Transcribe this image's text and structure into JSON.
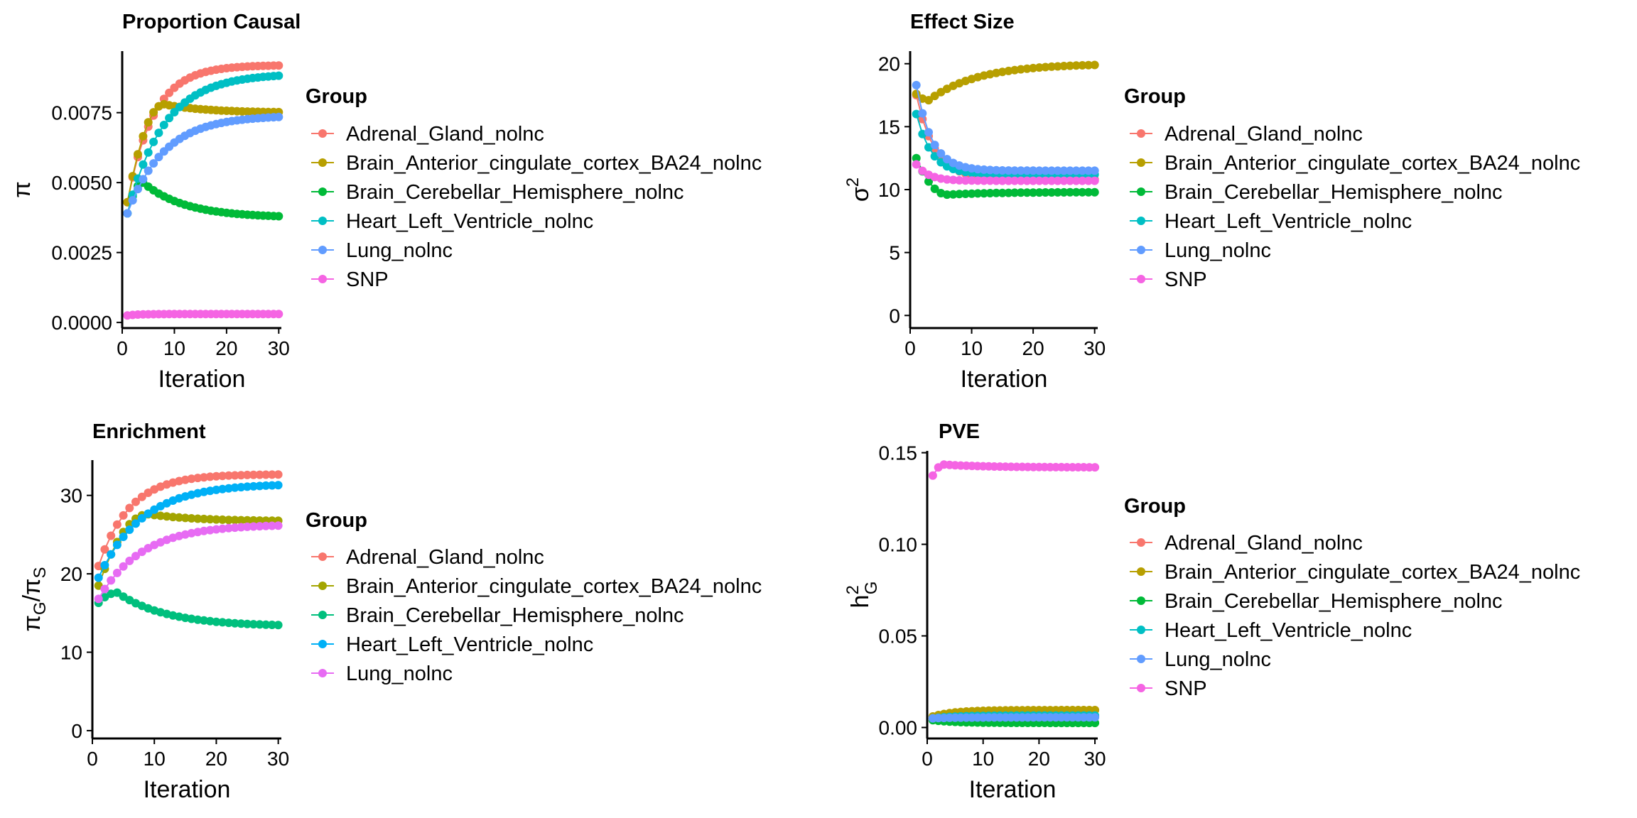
{
  "figure": {
    "description_free": true
  },
  "chart_data": [
    {
      "id": "proportion",
      "type": "line",
      "title": "Proportion Causal",
      "xlabel": "Iteration",
      "ylabel": "π",
      "xlim": [
        0,
        30.5
      ],
      "ylim": [
        -0.0002,
        0.0097
      ],
      "xticks": [
        0,
        10,
        20,
        30
      ],
      "xtick_labels": [
        "0",
        "10",
        "20",
        "30"
      ],
      "yticks": [
        0,
        0.0025,
        0.005,
        0.0075
      ],
      "ytick_labels": [
        "0.0000",
        "0.0025",
        "0.0050",
        "0.0075"
      ],
      "legend_title": "Group",
      "legend_position": "right",
      "series": [
        {
          "name": "Adrenal_Gland_nolnc",
          "color": "#F8766D",
          "start": 0.0043,
          "end": 0.0092,
          "peak_at": null,
          "peak": null,
          "tau": 5
        },
        {
          "name": "Brain_Anterior_cingulate_cortex_BA24_nolnc",
          "color": "#B79F00",
          "start": 0.0043,
          "end": 0.0075,
          "peak_at": 8,
          "peak": 0.0078,
          "tau": 3
        },
        {
          "name": "Brain_Cerebellar_Hemisphere_nolnc",
          "color": "#00BA38",
          "start": 0.0039,
          "end": 0.00375,
          "peak_at": 4,
          "peak": 0.005,
          "tau": 2
        },
        {
          "name": "Heart_Left_Ventricle_nolnc",
          "color": "#00BFC4",
          "start": 0.0039,
          "end": 0.0089,
          "peak_at": null,
          "peak": null,
          "tau": 7
        },
        {
          "name": "Lung_nolnc",
          "color": "#619CFF",
          "start": 0.0039,
          "end": 0.0074,
          "peak_at": null,
          "peak": null,
          "tau": 7
        },
        {
          "name": "SNP",
          "color": "#F564E3",
          "start": 0.00025,
          "end": 0.0003,
          "peak_at": null,
          "peak": null,
          "tau": 2
        }
      ]
    },
    {
      "id": "effect",
      "type": "line",
      "title": "Effect Size",
      "xlabel": "Iteration",
      "ylabel": "σ2",
      "xlim": [
        0,
        30.5
      ],
      "ylim": [
        -1,
        21
      ],
      "xticks": [
        0,
        10,
        20,
        30
      ],
      "xtick_labels": [
        "0",
        "10",
        "20",
        "30"
      ],
      "yticks": [
        0,
        5,
        10,
        15,
        20
      ],
      "ytick_labels": [
        "0",
        "5",
        "10",
        "15",
        "20"
      ],
      "legend_title": "Group",
      "legend_position": "right",
      "series": [
        {
          "name": "Adrenal_Gland_nolnc",
          "color": "#F8766D",
          "start": 17.5,
          "end": 10.8,
          "peak_at": null,
          "peak": null,
          "tau": 3
        },
        {
          "name": "Brain_Anterior_cingulate_cortex_BA24_nolnc",
          "color": "#B79F00",
          "start": 17.6,
          "end": 20.0,
          "peak_at": 3,
          "peak": 17.1,
          "tau": 5
        },
        {
          "name": "Brain_Cerebellar_Hemisphere_nolnc",
          "color": "#00BA38",
          "start": 12.5,
          "end": 9.8,
          "peak_at": 6,
          "peak": 9.6,
          "tau": 1.5
        },
        {
          "name": "Heart_Left_Ventricle_nolnc",
          "color": "#00BFC4",
          "start": 16.0,
          "end": 11.2,
          "peak_at": null,
          "peak": null,
          "tau": 2.5
        },
        {
          "name": "Lung_nolnc",
          "color": "#619CFF",
          "start": 18.3,
          "end": 11.5,
          "peak_at": null,
          "peak": null,
          "tau": 2.5
        },
        {
          "name": "SNP",
          "color": "#F564E3",
          "start": 12.0,
          "end": 10.7,
          "peak_at": null,
          "peak": null,
          "tau": 2
        }
      ]
    },
    {
      "id": "enrichment",
      "type": "line",
      "title": "Enrichment",
      "xlabel": "Iteration",
      "ylabel": "πG/πS",
      "xlim": [
        0,
        30.5
      ],
      "ylim": [
        -1,
        34.5
      ],
      "xticks": [
        0,
        10,
        20,
        30
      ],
      "xtick_labels": [
        "0",
        "10",
        "20",
        "30"
      ],
      "yticks": [
        0,
        10,
        20,
        30
      ],
      "ytick_labels": [
        "0",
        "10",
        "20",
        "30"
      ],
      "legend_title": "Group",
      "legend_position": "right",
      "series": [
        {
          "name": "Adrenal_Gland_nolnc",
          "color": "#F8766D",
          "start": 21.0,
          "end": 32.7,
          "peak_at": null,
          "peak": null,
          "tau": 5
        },
        {
          "name": "Brain_Anterior_cingulate_cortex_BA24_nolnc",
          "color": "#A3A500",
          "start": 18.5,
          "end": 26.7,
          "peak_at": 9,
          "peak": 27.6,
          "tau": 3
        },
        {
          "name": "Brain_Cerebellar_Hemisphere_nolnc",
          "color": "#00BF7D",
          "start": 16.3,
          "end": 13.3,
          "peak_at": 4,
          "peak": 17.6,
          "tau": 2
        },
        {
          "name": "Heart_Left_Ventricle_nolnc",
          "color": "#00B0F6",
          "start": 19.5,
          "end": 31.5,
          "peak_at": null,
          "peak": null,
          "tau": 7
        },
        {
          "name": "Lung_nolnc",
          "color": "#E76BF3",
          "start": 16.8,
          "end": 26.3,
          "peak_at": null,
          "peak": null,
          "tau": 7
        }
      ]
    },
    {
      "id": "pve",
      "type": "line",
      "title": "PVE",
      "xlabel": "Iteration",
      "ylabel": "h2G",
      "xlim": [
        0,
        30.5
      ],
      "ylim": [
        -0.006,
        0.151
      ],
      "xticks": [
        0,
        10,
        20,
        30
      ],
      "xtick_labels": [
        "0",
        "10",
        "20",
        "30"
      ],
      "yticks": [
        0,
        0.05,
        0.1,
        0.15
      ],
      "ytick_labels": [
        "0.00",
        "0.05",
        "0.10",
        "0.15"
      ],
      "legend_title": "Group",
      "legend_position": "right",
      "series": [
        {
          "name": "Adrenal_Gland_nolnc",
          "color": "#F8766D",
          "start": 0.005,
          "end": 0.006,
          "peak_at": null,
          "peak": null,
          "tau": 4
        },
        {
          "name": "Brain_Anterior_cingulate_cortex_BA24_nolnc",
          "color": "#B79F00",
          "start": 0.006,
          "end": 0.0095,
          "peak_at": null,
          "peak": null,
          "tau": 4
        },
        {
          "name": "Brain_Cerebellar_Hemisphere_nolnc",
          "color": "#00BA38",
          "start": 0.004,
          "end": 0.0025,
          "peak_at": null,
          "peak": null,
          "tau": 4
        },
        {
          "name": "Heart_Left_Ventricle_nolnc",
          "color": "#00BFC4",
          "start": 0.005,
          "end": 0.0065,
          "peak_at": null,
          "peak": null,
          "tau": 4
        },
        {
          "name": "Lung_nolnc",
          "color": "#619CFF",
          "start": 0.005,
          "end": 0.0055,
          "peak_at": null,
          "peak": null,
          "tau": 4
        },
        {
          "name": "SNP",
          "color": "#F564E3",
          "start": 0.1375,
          "end": 0.142,
          "peak_at": 3,
          "peak": 0.1435,
          "tau": 2
        }
      ]
    }
  ]
}
